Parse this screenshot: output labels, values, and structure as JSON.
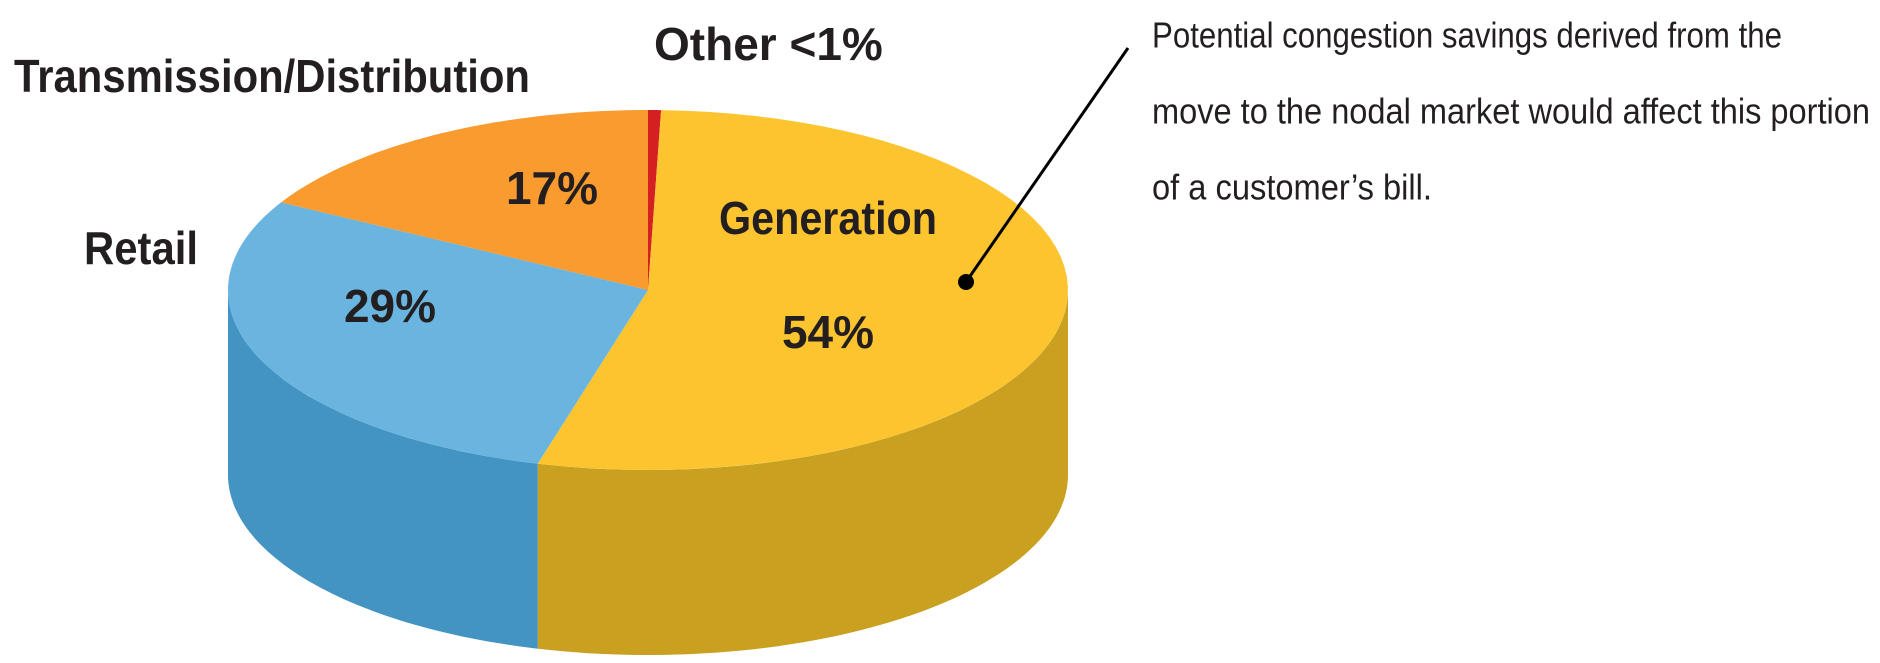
{
  "chart_data": {
    "type": "pie3d",
    "categories": [
      "Other",
      "Generation",
      "Retail",
      "Transmission/Distribution"
    ],
    "values": [
      0.5,
      54,
      29,
      17
    ],
    "value_labels": [
      "<1%",
      "54%",
      "29%",
      "17%"
    ],
    "colors": [
      "#d42020",
      "#fcc52f",
      "#6ab4e0",
      "#f99b2e"
    ],
    "side_colors": [
      "#a01818",
      "#c9a020",
      "#4394c2",
      "#d07a20"
    ],
    "annotation": [
      "Potential congestion savings derived from the",
      "move to the nodal market would affect this portion",
      "of a customer’s bill."
    ]
  }
}
